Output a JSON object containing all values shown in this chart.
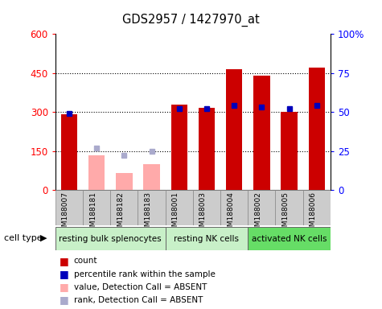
{
  "title": "GDS2957 / 1427970_at",
  "samples": [
    "GSM188007",
    "GSM188181",
    "GSM188182",
    "GSM188183",
    "GSM188001",
    "GSM188003",
    "GSM188004",
    "GSM188002",
    "GSM188005",
    "GSM188006"
  ],
  "count_values": [
    290,
    135,
    65,
    100,
    330,
    315,
    465,
    440,
    300,
    470
  ],
  "absent_flags": [
    false,
    true,
    true,
    true,
    false,
    false,
    false,
    false,
    false,
    false
  ],
  "percentile_values": [
    49,
    null,
    null,
    null,
    52,
    52,
    54,
    53,
    52,
    54
  ],
  "rank_absent_values": [
    null,
    27,
    22,
    25,
    null,
    null,
    null,
    null,
    null,
    null
  ],
  "ylim_left": [
    0,
    600
  ],
  "ylim_right": [
    0,
    100
  ],
  "yticks_left": [
    0,
    150,
    300,
    450,
    600
  ],
  "yticks_right": [
    0,
    25,
    50,
    75,
    100
  ],
  "ytick_labels_right": [
    "0",
    "25",
    "50",
    "75",
    "100%"
  ],
  "grid_values": [
    150,
    300,
    450
  ],
  "bar_width": 0.6,
  "count_color": "#cc0000",
  "absent_bar_color": "#ffaaaa",
  "percentile_color": "#0000bb",
  "rank_absent_color": "#aaaacc",
  "sample_bg": "#cccccc",
  "group1_color": "#c8f0c8",
  "group2_color": "#66ee66",
  "groups": [
    {
      "label": "resting bulk splenocytes",
      "start": 0,
      "end": 3,
      "color": "#c8f0c8"
    },
    {
      "label": "resting NK cells",
      "start": 4,
      "end": 6,
      "color": "#c8f0c8"
    },
    {
      "label": "activated NK cells",
      "start": 7,
      "end": 9,
      "color": "#66dd66"
    }
  ]
}
